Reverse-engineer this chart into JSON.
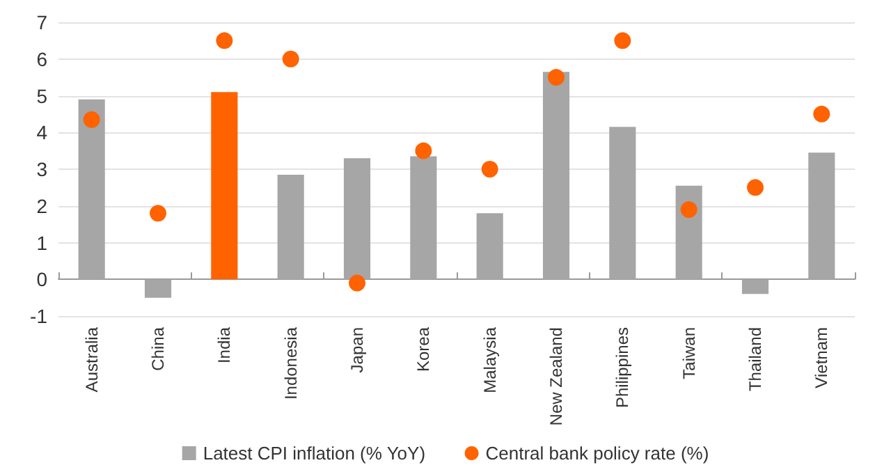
{
  "chart_data": {
    "type": "bar",
    "categories": [
      "Australia",
      "China",
      "India",
      "Indonesia",
      "Japan",
      "Korea",
      "Malaysia",
      "New Zealand",
      "Philippines",
      "Taiwan",
      "Thailand",
      "Vietnam"
    ],
    "series": [
      {
        "name": "Latest CPI inflation (% YoY)",
        "type": "bar",
        "color": "#a6a6a6",
        "colors": [
          "#a6a6a6",
          "#a6a6a6",
          "#ff6200",
          "#a6a6a6",
          "#a6a6a6",
          "#a6a6a6",
          "#a6a6a6",
          "#a6a6a6",
          "#a6a6a6",
          "#a6a6a6",
          "#a6a6a6",
          "#a6a6a6"
        ],
        "values": [
          4.9,
          -0.5,
          5.1,
          2.85,
          3.3,
          3.35,
          1.8,
          5.65,
          4.15,
          2.55,
          -0.4,
          3.45
        ]
      },
      {
        "name": "Central bank policy rate (%)",
        "type": "scatter",
        "color": "#ff6200",
        "marker": "circle",
        "values": [
          4.35,
          1.8,
          6.5,
          6.0,
          -0.1,
          3.5,
          3.0,
          5.5,
          6.5,
          1.9,
          2.5,
          4.5
        ]
      }
    ],
    "ylim": [
      -1,
      7
    ],
    "yticks": [
      -1,
      0,
      1,
      2,
      3,
      4,
      5,
      6,
      7
    ],
    "grid": "y",
    "legend": "bottom"
  }
}
